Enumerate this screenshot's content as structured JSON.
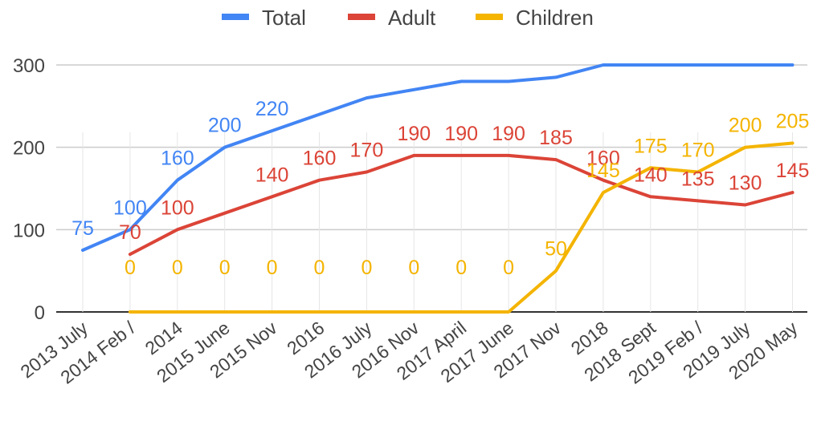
{
  "chart_data": {
    "type": "line",
    "title": "",
    "xlabel": "",
    "ylabel": "",
    "ylim": [
      0,
      300
    ],
    "yticks": [
      0,
      100,
      200,
      300
    ],
    "grid": true,
    "legend_position": "top",
    "categories": [
      "2013 July",
      "2014 Feb /",
      "2014",
      "2015 June",
      "2015 Nov",
      "2016",
      "2016 July",
      "2016 Nov",
      "2017 April",
      "2017 June",
      "2017 Nov",
      "2018",
      "2018 Sept",
      "2019 Feb /",
      "2019 July",
      "2020 May"
    ],
    "series": [
      {
        "name": "Total",
        "color": "#4285f4",
        "values": [
          75,
          100,
          160,
          200,
          220,
          240,
          260,
          270,
          280,
          280,
          285,
          300,
          300,
          300,
          300,
          300
        ],
        "labels": [
          "75",
          "100",
          "160",
          "200",
          "220",
          null,
          null,
          null,
          null,
          null,
          null,
          null,
          null,
          null,
          null,
          null
        ]
      },
      {
        "name": "Adult",
        "color": "#db4437",
        "values": [
          null,
          70,
          100,
          120,
          140,
          160,
          170,
          190,
          190,
          190,
          185,
          160,
          140,
          135,
          130,
          145
        ],
        "labels": [
          null,
          "70",
          "100",
          null,
          "140",
          "160",
          "170",
          "190",
          "190",
          "190",
          "185",
          "160",
          "140",
          "135",
          "130",
          "145"
        ]
      },
      {
        "name": "Children",
        "color": "#f4b400",
        "values": [
          null,
          0,
          0,
          0,
          0,
          0,
          0,
          0,
          0,
          0,
          50,
          145,
          175,
          170,
          200,
          205
        ],
        "labels": [
          null,
          "0",
          "0",
          "0",
          "0",
          "0",
          "0",
          "0",
          "0",
          "0",
          "50",
          "145",
          "175",
          "170",
          "200",
          "205"
        ]
      }
    ]
  }
}
